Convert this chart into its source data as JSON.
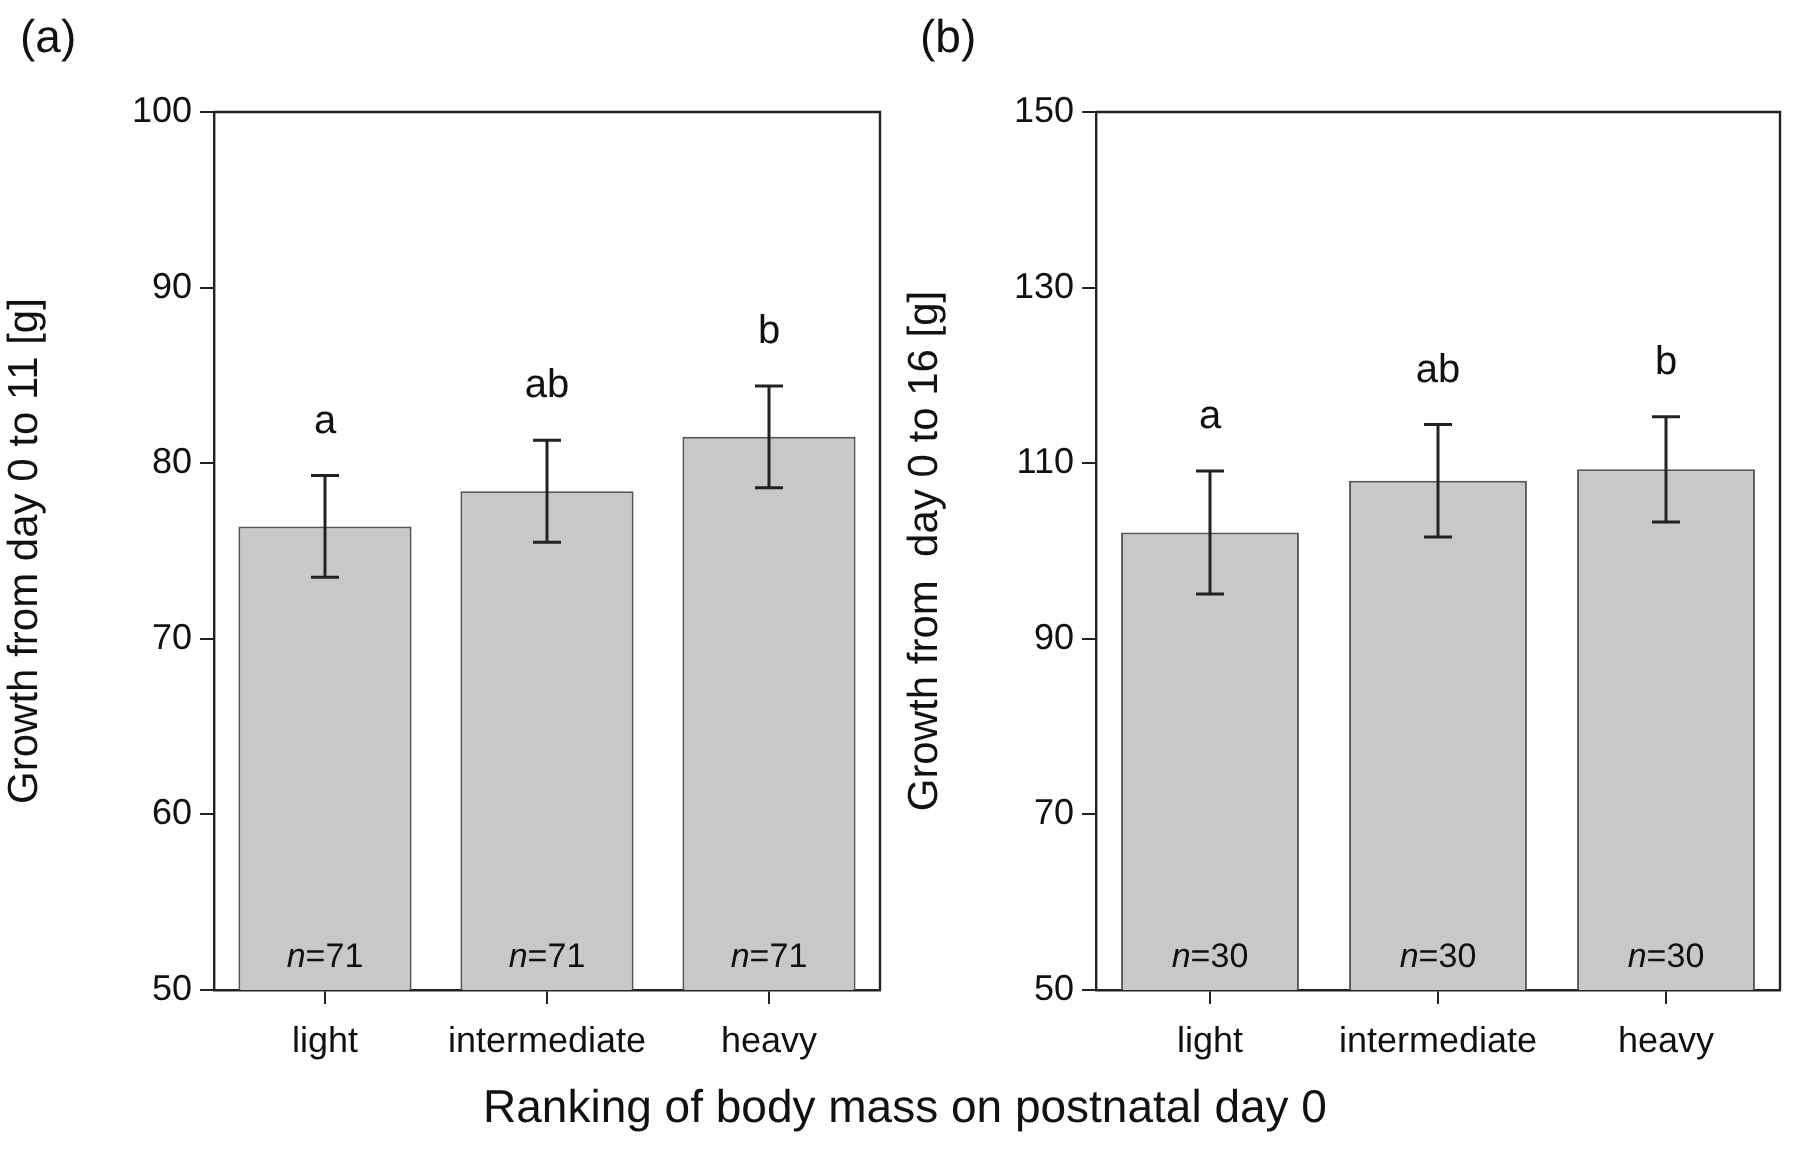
{
  "chart_data": [
    {
      "type": "bar",
      "title": "(a)",
      "ylabel": "Growth from day 0 to 11 [g]",
      "xlabel": "Ranking of body mass on postnatal day 0",
      "categories": [
        "light",
        "intermediate",
        "heavy"
      ],
      "values": [
        76.4,
        78.4,
        81.5
      ],
      "errors": [
        2.9,
        2.9,
        2.9
      ],
      "color": "#c8c8c8",
      "ylim": [
        50,
        100
      ],
      "yticks": [
        50,
        60,
        70,
        80,
        90,
        100
      ],
      "annotations": [
        "a",
        "ab",
        "b",
        "n=71",
        "n=71",
        "n=71"
      ]
    },
    {
      "type": "bar",
      "title": "(b)",
      "ylabel": "Growth from  day 0 to 16 [g]",
      "categories": [
        "light",
        "intermediate",
        "heavy"
      ],
      "values": [
        102.1,
        108.0,
        109.3
      ],
      "errors": [
        7.0,
        6.4,
        6.0
      ],
      "color": "#c8c8c8",
      "ylim": [
        50,
        150
      ],
      "yticks": [
        50,
        70,
        90,
        110,
        130,
        150
      ],
      "annotations": [
        "a",
        "ab",
        "b",
        "n=30",
        "n=30",
        "n=30"
      ]
    }
  ]
}
